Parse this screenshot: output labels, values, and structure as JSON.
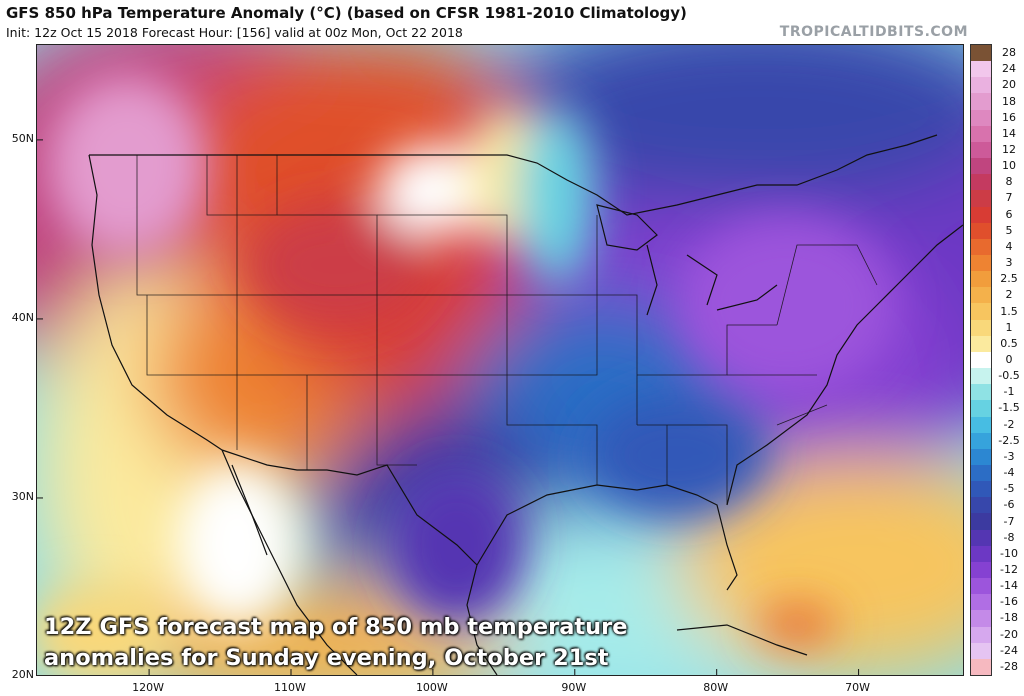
{
  "header": {
    "title": "GFS 850 hPa Temperature Anomaly (°C) (based on CFSR 1981-2010 Climatology)",
    "subtitle": "Init: 12z Oct 15 2018   Forecast Hour: [156]   valid at 00z Mon, Oct 22 2018",
    "source": "TROPICALTIDBITS.COM"
  },
  "map": {
    "lat_labels": [
      "50N",
      "40N",
      "30N",
      "20N"
    ],
    "lat_values": [
      50,
      40,
      30,
      20
    ],
    "lon_labels": [
      "120W",
      "110W",
      "100W",
      "90W",
      "80W",
      "70W"
    ],
    "lon_values": [
      -120,
      -110,
      -100,
      -90,
      -80,
      -70
    ],
    "extent": {
      "lon_min": -127.9,
      "lon_max": -62.5,
      "lat_min": 20,
      "lat_max": 55.3
    },
    "caption_lines": [
      "12Z GFS forecast map of 850 mb temperature",
      "anomalies for Sunday evening, October 21st"
    ],
    "anomaly_regions": [
      {
        "name": "pacific-northwest-warm",
        "lon": -121,
        "lat": 47.5,
        "anomaly": 10
      },
      {
        "name": "northern-rockies-warm",
        "lon": -108,
        "lat": 46,
        "anomaly": 7
      },
      {
        "name": "central-plains-warm",
        "lon": -104,
        "lat": 41,
        "anomaly": 5
      },
      {
        "name": "great-basin-warm",
        "lon": -113,
        "lat": 39,
        "anomaly": 3
      },
      {
        "name": "texas-cold",
        "lon": -101,
        "lat": 31,
        "anomaly": -7
      },
      {
        "name": "southeast-cold",
        "lon": -86,
        "lat": 34,
        "anomaly": -5
      },
      {
        "name": "ohio-valley-cold",
        "lon": -84,
        "lat": 39,
        "anomaly": -10
      },
      {
        "name": "northeast-cold",
        "lon": -75,
        "lat": 43,
        "anomaly": -12
      },
      {
        "name": "hudson-bay-cold",
        "lon": -82,
        "lat": 52,
        "anomaly": -10
      },
      {
        "name": "atlantic-warm",
        "lon": -72,
        "lat": 25,
        "anomaly": 2
      }
    ]
  },
  "colorbar": {
    "labels": [
      "28",
      "24",
      "20",
      "18",
      "16",
      "14",
      "12",
      "10",
      "8",
      "7",
      "6",
      "5",
      "4",
      "3",
      "2.5",
      "2",
      "1.5",
      "1",
      "0.5",
      "0",
      "-0.5",
      "-1",
      "-1.5",
      "-2",
      "-2.5",
      "-3",
      "-4",
      "-5",
      "-6",
      "-7",
      "-8",
      "-10",
      "-12",
      "-14",
      "-16",
      "-18",
      "-20",
      "-24",
      "-28"
    ],
    "colors": [
      "#7a5234",
      "#f2c7ec",
      "#eab1e0",
      "#e39ccf",
      "#de88c0",
      "#d872ad",
      "#cd5a99",
      "#c0457f",
      "#c43a60",
      "#cc3c46",
      "#d83c34",
      "#e04f2c",
      "#e86a2e",
      "#ee8332",
      "#f19d3c",
      "#f4b14b",
      "#f7c55f",
      "#f9d87a",
      "#fbea9e",
      "#ffffff",
      "#c7f3ee",
      "#8fe2e4",
      "#66d2e2",
      "#47bde3",
      "#36a3dc",
      "#2c87d2",
      "#2c6dc5",
      "#3058b8",
      "#3747ab",
      "#3c3aa0",
      "#5436b2",
      "#6c38c4",
      "#8541d2",
      "#9c55dc",
      "#b06ee4",
      "#c48ae8",
      "#d6a8ee",
      "#e5c4f2",
      "#f6b9c0"
    ]
  }
}
